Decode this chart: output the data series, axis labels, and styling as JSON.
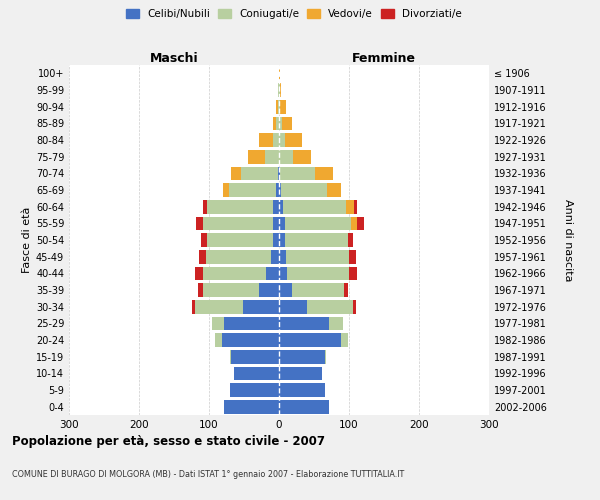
{
  "age_groups": [
    "0-4",
    "5-9",
    "10-14",
    "15-19",
    "20-24",
    "25-29",
    "30-34",
    "35-39",
    "40-44",
    "45-49",
    "50-54",
    "55-59",
    "60-64",
    "65-69",
    "70-74",
    "75-79",
    "80-84",
    "85-89",
    "90-94",
    "95-99",
    "100+"
  ],
  "birth_years": [
    "2002-2006",
    "1997-2001",
    "1992-1996",
    "1987-1991",
    "1982-1986",
    "1977-1981",
    "1972-1976",
    "1967-1971",
    "1962-1966",
    "1957-1961",
    "1952-1956",
    "1947-1951",
    "1942-1946",
    "1937-1941",
    "1932-1936",
    "1927-1931",
    "1922-1926",
    "1917-1921",
    "1912-1916",
    "1907-1911",
    "≤ 1906"
  ],
  "males": {
    "celibi": [
      78,
      70,
      65,
      68,
      82,
      78,
      52,
      28,
      18,
      12,
      8,
      8,
      8,
      4,
      2,
      0,
      0,
      0,
      0,
      0,
      0
    ],
    "coniugati": [
      0,
      0,
      0,
      2,
      10,
      18,
      68,
      80,
      90,
      92,
      95,
      100,
      95,
      68,
      52,
      20,
      8,
      4,
      2,
      1,
      0
    ],
    "vedovi": [
      0,
      0,
      0,
      0,
      0,
      0,
      0,
      0,
      0,
      0,
      0,
      0,
      0,
      8,
      15,
      25,
      20,
      5,
      2,
      0,
      0
    ],
    "divorziati": [
      0,
      0,
      0,
      0,
      0,
      0,
      5,
      8,
      12,
      10,
      8,
      10,
      5,
      0,
      0,
      0,
      0,
      0,
      0,
      0,
      0
    ]
  },
  "females": {
    "nubili": [
      72,
      65,
      62,
      65,
      88,
      72,
      40,
      18,
      12,
      10,
      8,
      8,
      5,
      3,
      2,
      0,
      0,
      0,
      0,
      0,
      0
    ],
    "coniugate": [
      0,
      0,
      0,
      2,
      10,
      20,
      65,
      75,
      88,
      90,
      90,
      95,
      90,
      65,
      50,
      20,
      8,
      4,
      2,
      1,
      0
    ],
    "vedove": [
      0,
      0,
      0,
      0,
      0,
      0,
      0,
      0,
      0,
      0,
      0,
      8,
      12,
      20,
      25,
      25,
      25,
      15,
      8,
      2,
      1
    ],
    "divorziate": [
      0,
      0,
      0,
      0,
      0,
      0,
      5,
      5,
      12,
      10,
      8,
      10,
      5,
      0,
      0,
      0,
      0,
      0,
      0,
      0,
      0
    ]
  },
  "colors": {
    "celibi": "#4472c4",
    "coniugati": "#b8cfa0",
    "vedovi": "#f0a830",
    "divorziati": "#cc2222"
  },
  "legend_labels": [
    "Celibi/Nubili",
    "Coniugati/e",
    "Vedovi/e",
    "Divorziati/e"
  ],
  "title_main": "Popolazione per età, sesso e stato civile - 2007",
  "title_sub": "COMUNE DI BURAGO DI MOLGORA (MB) - Dati ISTAT 1° gennaio 2007 - Elaborazione TUTTITALIA.IT",
  "xlabel_left": "Maschi",
  "xlabel_right": "Femmine",
  "ylabel_left": "Fasce di età",
  "ylabel_right": "Anni di nascita",
  "xlim": 300,
  "bg_color": "#f0f0f0",
  "plot_bg": "#ffffff"
}
